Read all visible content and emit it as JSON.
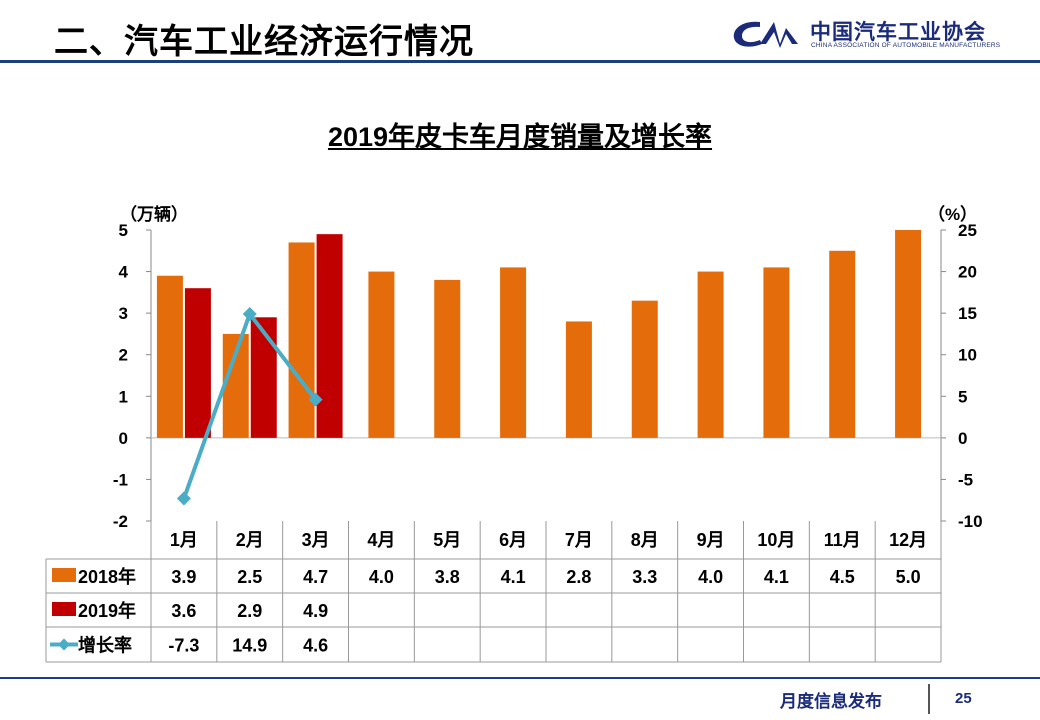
{
  "header": {
    "title": "二、汽车工业经济运行情况"
  },
  "logo": {
    "cn": "中国汽车工业协会",
    "en": "CHINA ASSOCIATION OF AUTOMOBILE MANUFACTURERS"
  },
  "footer": {
    "text": "月度信息发布",
    "page": "25"
  },
  "chart_data": {
    "type": "bar",
    "title": "2019年皮卡车月度销量及增长率",
    "y_left_unit": "（万辆）",
    "y_right_unit": "（%）",
    "categories": [
      "1月",
      "2月",
      "3月",
      "4月",
      "5月",
      "6月",
      "7月",
      "8月",
      "9月",
      "10月",
      "11月",
      "12月"
    ],
    "ylim_left": [
      -2,
      5
    ],
    "ylim_right": [
      -10,
      25
    ],
    "yticks_left": [
      5,
      4,
      3,
      2,
      1,
      0,
      -1,
      -2
    ],
    "yticks_right": [
      25,
      20,
      15,
      10,
      5,
      0,
      -5,
      -10
    ],
    "series": [
      {
        "name": "2018年",
        "type": "bar",
        "axis": "left",
        "color": "#e46c0a",
        "values": [
          3.9,
          2.5,
          4.7,
          4.0,
          3.8,
          4.1,
          2.8,
          3.3,
          4.0,
          4.1,
          4.5,
          5.0
        ],
        "labels": [
          "3.9",
          "2.5",
          "4.7",
          "4.0",
          "3.8",
          "4.1",
          "2.8",
          "3.3",
          "4.0",
          "4.1",
          "4.5",
          "5.0"
        ]
      },
      {
        "name": "2019年",
        "type": "bar",
        "axis": "left",
        "color": "#c00000",
        "values": [
          3.6,
          2.9,
          4.9,
          null,
          null,
          null,
          null,
          null,
          null,
          null,
          null,
          null
        ],
        "labels": [
          "3.6",
          "2.9",
          "4.9",
          "",
          "",
          "",
          "",
          "",
          "",
          "",
          "",
          ""
        ]
      },
      {
        "name": "增长率",
        "type": "line",
        "axis": "right",
        "color": "#4bacc6",
        "values": [
          -7.3,
          14.9,
          4.6,
          null,
          null,
          null,
          null,
          null,
          null,
          null,
          null,
          null
        ],
        "labels": [
          "-7.3",
          "14.9",
          "4.6",
          "",
          "",
          "",
          "",
          "",
          "",
          "",
          "",
          ""
        ]
      }
    ]
  }
}
